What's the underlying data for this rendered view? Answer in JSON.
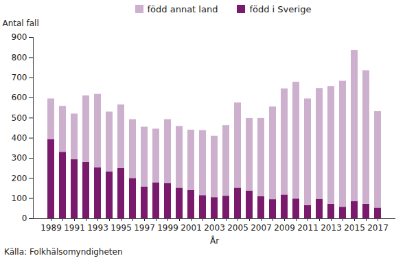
{
  "chart_data": {
    "type": "bar",
    "stacked": true,
    "y_label": "Antal fall",
    "x_label": "År",
    "source": "Källa: Folkhälsomyndigheten",
    "categories": [
      "1989",
      null,
      "1991",
      null,
      "1993",
      null,
      "1995",
      null,
      "1997",
      null,
      "1999",
      null,
      "2001",
      null,
      "2003",
      null,
      "2005",
      null,
      "2007",
      null,
      "2009",
      null,
      "2011",
      null,
      "2013",
      null,
      "2015",
      null,
      "2017"
    ],
    "series": [
      {
        "name": "född annat land",
        "color": "#cdb0cd",
        "values": [
          203,
          228,
          227,
          330,
          365,
          297,
          315,
          292,
          298,
          267,
          317,
          306,
          300,
          323,
          305,
          351,
          423,
          360,
          388,
          460,
          527,
          580,
          530,
          550,
          585,
          626,
          750,
          663,
          479
        ]
      },
      {
        "name": "född i Sverige",
        "color": "#7a1a6c",
        "values": [
          392,
          330,
          293,
          280,
          253,
          233,
          250,
          200,
          157,
          178,
          175,
          152,
          140,
          115,
          105,
          112,
          152,
          138,
          110,
          95,
          118,
          98,
          65,
          97,
          72,
          57,
          85,
          72,
          53
        ]
      }
    ],
    "ylim": [
      0,
      900
    ],
    "yticks": [
      0,
      100,
      200,
      300,
      400,
      500,
      600,
      700,
      800,
      900
    ],
    "grid": false,
    "legend": "top"
  }
}
